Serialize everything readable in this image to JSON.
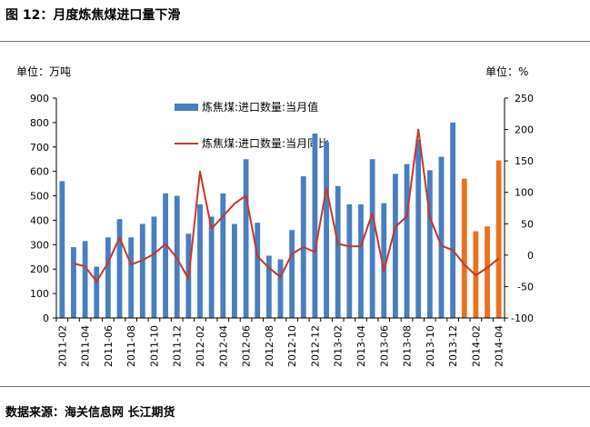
{
  "header": {
    "title": "图 12：月度炼焦煤进口量下滑"
  },
  "footer": {
    "source": "数据来源：海关信息网 长江期货"
  },
  "colors": {
    "bar": "#4a7ebf",
    "bar_highlight": "#e8721f",
    "line": "#c0392b",
    "axis": "#000000"
  },
  "chart_data": {
    "type": "bar",
    "title": "",
    "left_unit_label": "单位：万吨",
    "right_unit_label": "单位：%",
    "ylim_left": [
      0,
      900
    ],
    "yticks_left": [
      0,
      100,
      200,
      300,
      400,
      500,
      600,
      700,
      800,
      900
    ],
    "ylim_right": [
      -100,
      250
    ],
    "yticks_right": [
      -100,
      -50,
      0,
      50,
      100,
      150,
      200,
      250
    ],
    "grid": false,
    "categories": [
      "2011-02",
      "2011-03",
      "2011-04",
      "2011-05",
      "2011-06",
      "2011-07",
      "2011-08",
      "2011-09",
      "2011-10",
      "2011-11",
      "2011-12",
      "2012-01",
      "2012-02",
      "2012-03",
      "2012-04",
      "2012-05",
      "2012-06",
      "2012-07",
      "2012-08",
      "2012-09",
      "2012-10",
      "2012-11",
      "2012-12",
      "2013-01",
      "2013-02",
      "2013-03",
      "2013-04",
      "2013-05",
      "2013-06",
      "2013-07",
      "2013-08",
      "2013-09",
      "2013-10",
      "2013-11",
      "2013-12",
      "2014-01",
      "2014-02",
      "2014-03",
      "2014-04"
    ],
    "x_tick_labels": [
      "2011-02",
      "2011-04",
      "2011-06",
      "2011-08",
      "2011-10",
      "2011-12",
      "2012-02",
      "2012-04",
      "2012-06",
      "2012-08",
      "2012-10",
      "2012-12",
      "2013-02",
      "2013-04",
      "2013-06",
      "2013-08",
      "2013-10",
      "2013-12",
      "2014-02",
      "2014-04"
    ],
    "highlight_from": "2014-01",
    "series": [
      {
        "name": "炼焦煤:进口数量:当月值",
        "type": "bar",
        "axis": "left",
        "values": [
          560,
          290,
          315,
          210,
          330,
          405,
          330,
          385,
          415,
          510,
          500,
          345,
          465,
          415,
          510,
          385,
          650,
          390,
          255,
          240,
          360,
          580,
          755,
          720,
          540,
          465,
          465,
          650,
          470,
          590,
          630,
          730,
          605,
          660,
          800,
          570,
          355,
          375,
          645
        ]
      },
      {
        "name": "炼焦煤:进口数量:当月同比",
        "type": "line",
        "axis": "right",
        "values": [
          null,
          -13,
          -18,
          -42,
          -12,
          28,
          -15,
          -8,
          2,
          18,
          -5,
          -38,
          133,
          42,
          62,
          82,
          95,
          -2,
          -20,
          -35,
          2,
          13,
          5,
          107,
          18,
          14,
          14,
          67,
          -25,
          45,
          62,
          200,
          60,
          15,
          8,
          -15,
          -32,
          -20,
          -5
        ]
      }
    ]
  }
}
